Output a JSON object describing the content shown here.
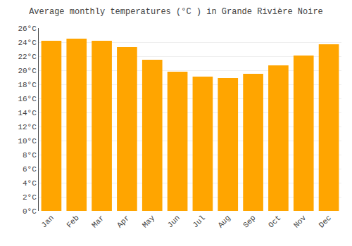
{
  "chart_data": {
    "type": "bar",
    "title": "Average monthly temperatures (°C ) in Grande Rivière Noire",
    "categories": [
      "Jan",
      "Feb",
      "Mar",
      "Apr",
      "May",
      "Jun",
      "Jul",
      "Aug",
      "Sep",
      "Oct",
      "Nov",
      "Dec"
    ],
    "values": [
      24.2,
      24.5,
      24.2,
      23.3,
      21.5,
      19.8,
      19.1,
      18.9,
      19.5,
      20.7,
      22.1,
      23.7
    ],
    "color": "#FFA500",
    "ylim": [
      0,
      26
    ],
    "yticks": [
      {
        "value": 0,
        "label": "0°C"
      },
      {
        "value": 2,
        "label": "2°C"
      },
      {
        "value": 4,
        "label": "4°C"
      },
      {
        "value": 6,
        "label": "6°C"
      },
      {
        "value": 8,
        "label": "8°C"
      },
      {
        "value": 10,
        "label": "10°C"
      },
      {
        "value": 12,
        "label": "12°C"
      },
      {
        "value": 14,
        "label": "14°C"
      },
      {
        "value": 16,
        "label": "16°C"
      },
      {
        "value": 18,
        "label": "18°C"
      },
      {
        "value": 20,
        "label": "20°C"
      },
      {
        "value": 22,
        "label": "22°C"
      },
      {
        "value": 24,
        "label": "24°C"
      },
      {
        "value": 26,
        "label": "26°C"
      }
    ],
    "grid": true
  }
}
